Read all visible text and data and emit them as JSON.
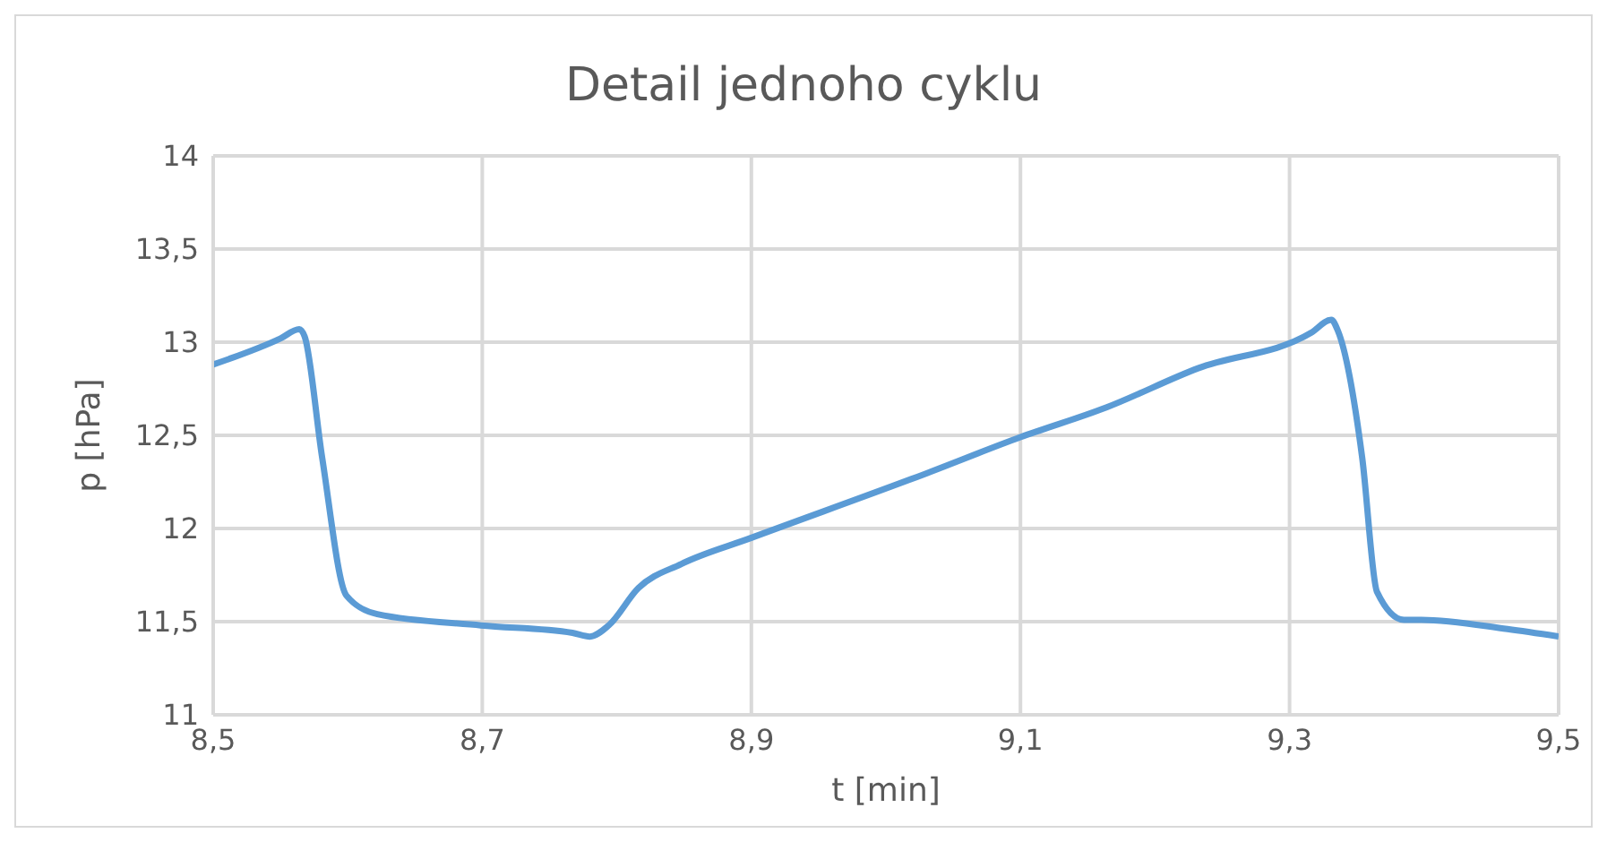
{
  "chart_data": {
    "type": "line",
    "title": "Detail jednoho cyklu",
    "xlabel": "t [min]",
    "ylabel": "p [hPa]",
    "x": [
      8.5,
      8.55,
      8.564,
      8.568,
      8.581,
      8.599,
      8.622,
      8.699,
      8.767,
      8.78,
      8.794,
      8.816,
      8.848,
      8.9,
      9.028,
      9.1,
      9.164,
      9.232,
      9.316,
      9.331,
      9.336,
      9.354,
      9.365,
      9.385,
      9.398,
      9.462,
      9.5
    ],
    "series": [
      {
        "color": "#5b9bd5",
        "values": [
          12.88,
          13.02,
          13.07,
          13.03,
          12.38,
          11.64,
          11.54,
          11.48,
          11.44,
          11.42,
          11.48,
          11.68,
          11.81,
          11.95,
          12.29,
          12.49,
          12.65,
          12.86,
          13.05,
          13.12,
          13.06,
          12.38,
          11.66,
          11.51,
          11.51,
          11.46,
          11.42
        ]
      }
    ],
    "xlim": [
      8.5,
      9.5
    ],
    "xticks": [
      {
        "value": 8.5,
        "label": "8,5"
      },
      {
        "value": 8.7,
        "label": "8,7"
      },
      {
        "value": 8.9,
        "label": "8,9"
      },
      {
        "value": 9.1,
        "label": "9,1"
      },
      {
        "value": 9.3,
        "label": "9,3"
      },
      {
        "value": 9.5,
        "label": "9,5"
      }
    ],
    "ylim": [
      11,
      14
    ],
    "yticks": [
      11,
      {
        "value": 11.5,
        "label": "11,5"
      },
      12,
      {
        "value": 12.5,
        "label": "12,5"
      },
      13,
      {
        "value": 13.5,
        "label": "13,5"
      },
      14
    ],
    "grid": true,
    "legend": false,
    "marker": "none",
    "line_style": "solid"
  }
}
